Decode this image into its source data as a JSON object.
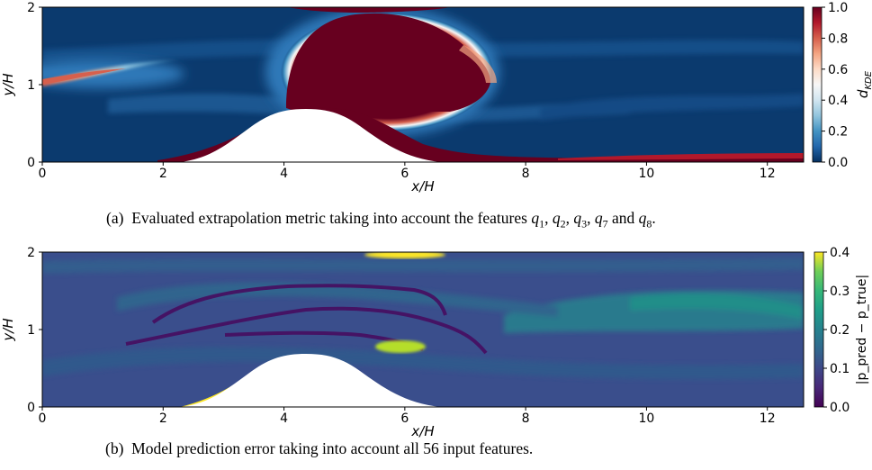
{
  "chart_data": [
    {
      "type": "heatmap",
      "panel_label": "(a)",
      "caption": "Evaluated extrapolation metric taking into account the features q1, q2, q3, q7 and q8.",
      "caption_prefix": "Evaluated extrapolation metric taking into account the features",
      "caption_features": [
        "q1",
        "q2",
        "q3",
        "q7",
        "q8"
      ],
      "xlabel": "x/H",
      "ylabel": "y/H",
      "xlim": [
        0,
        12.6
      ],
      "ylim": [
        0,
        2
      ],
      "xticks": [
        0,
        2,
        4,
        6,
        8,
        10,
        12
      ],
      "yticks": [
        0,
        1,
        2
      ],
      "colorbar": {
        "label": "d_KDE",
        "label_main": "d",
        "label_sub": "KDE",
        "range": [
          0.0,
          1.0
        ],
        "ticks": [
          "0.0",
          "0.2",
          "0.4",
          "0.6",
          "0.8",
          "1.0"
        ],
        "colormap": "RdBu_r"
      },
      "colors": {
        "background": "#0b3a6e",
        "high": "#67001f",
        "mid": "#f7f7f7",
        "low": "#053061"
      },
      "features": [
        {
          "name": "central-bulb",
          "x": [
            3.9,
            7.3
          ],
          "y": [
            0.55,
            1.95
          ],
          "value": 1.0
        },
        {
          "name": "inlet-streak",
          "x": [
            0.0,
            2.2
          ],
          "y": [
            0.95,
            1.3
          ],
          "value": 0.55
        },
        {
          "name": "hill-surface-band",
          "x": [
            2.3,
            6.0
          ],
          "y": [
            0.0,
            0.7
          ],
          "value": 0.9
        },
        {
          "name": "bottom-wall-band",
          "x": [
            6.0,
            12.6
          ],
          "y": [
            0.0,
            0.08
          ],
          "value": 0.95
        },
        {
          "name": "top-wall-band",
          "x": [
            4.8,
            6.7
          ],
          "y": [
            1.95,
            2.0
          ],
          "value": 1.0
        }
      ]
    },
    {
      "type": "heatmap",
      "panel_label": "(b)",
      "caption": "Model prediction error taking into account all 56 input features.",
      "xlabel": "x/H",
      "ylabel": "y/H",
      "xlim": [
        0,
        12.6
      ],
      "ylim": [
        0,
        2
      ],
      "xticks": [
        0,
        2,
        4,
        6,
        8,
        10,
        12
      ],
      "yticks": [
        0,
        1,
        2
      ],
      "colorbar": {
        "label": "|p_pred − p_true|",
        "range": [
          0.0,
          0.4
        ],
        "ticks": [
          "0.0",
          "0.1",
          "0.2",
          "0.3",
          "0.4"
        ],
        "colormap": "viridis"
      },
      "colors": {
        "background": "#3a4e8c",
        "high": "#fde725",
        "mid": "#21918c",
        "low": "#440154"
      },
      "features": [
        {
          "name": "top-wall-hotspot",
          "x": [
            6.0,
            7.0
          ],
          "y": [
            1.93,
            2.0
          ],
          "value": 0.38
        },
        {
          "name": "hill-crest-hotspot",
          "x": [
            5.6,
            6.5
          ],
          "y": [
            0.55,
            0.75
          ],
          "value": 0.3
        },
        {
          "name": "hill-windward-streak",
          "x": [
            2.3,
            3.6
          ],
          "y": [
            0.0,
            0.25
          ],
          "value": 0.35
        },
        {
          "name": "right-wake-band",
          "x": [
            8.5,
            12.6
          ],
          "y": [
            1.05,
            1.45
          ],
          "value": 0.2
        },
        {
          "name": "low-error-dark-streaks",
          "x": [
            1.3,
            7.8
          ],
          "y": [
            0.5,
            1.6
          ],
          "value": 0.02
        }
      ]
    }
  ]
}
